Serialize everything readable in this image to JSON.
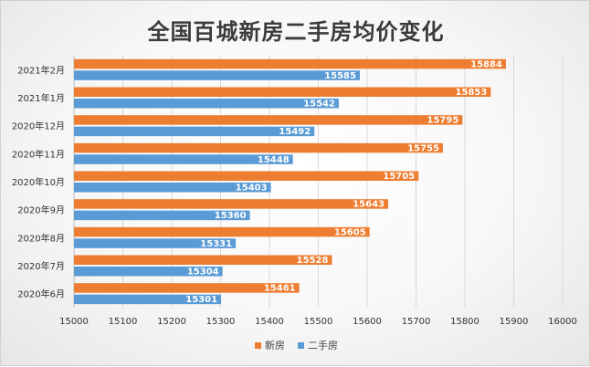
{
  "chart_data": {
    "type": "bar",
    "orientation": "horizontal",
    "title": "全国百城新房二手房均价变化",
    "categories": [
      "2020年6月",
      "2020年7月",
      "2020年8月",
      "2020年9月",
      "2020年10月",
      "2020年11月",
      "2020年12月",
      "2021年1月",
      "2021年2月"
    ],
    "series": [
      {
        "name": "新房",
        "color": "#ED7D31",
        "values": [
          15461,
          15528,
          15605,
          15643,
          15705,
          15755,
          15795,
          15853,
          15884
        ]
      },
      {
        "name": "二手房",
        "color": "#5B9BD5",
        "values": [
          15301,
          15304,
          15331,
          15360,
          15403,
          15448,
          15492,
          15542,
          15585
        ]
      }
    ],
    "xlim": [
      15000,
      16000
    ],
    "xticks": [
      15000,
      15100,
      15200,
      15300,
      15400,
      15500,
      15600,
      15700,
      15800,
      15900,
      16000
    ],
    "grid": "vertical",
    "legend": "bottom"
  }
}
